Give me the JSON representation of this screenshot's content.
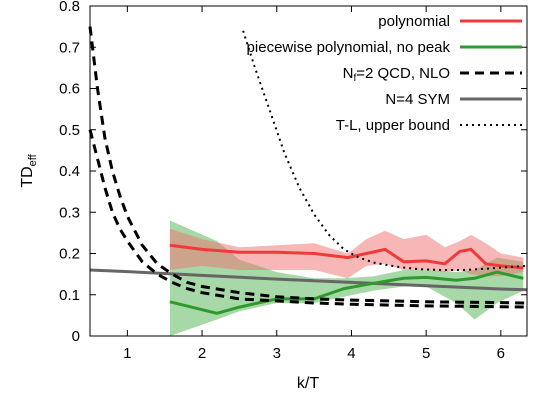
{
  "chart_data": {
    "type": "line",
    "xlabel": "k/T",
    "ylabel": "TD",
    "ylabel_sub": "eff",
    "xlim": [
      0.5,
      6.35
    ],
    "ylim": [
      0,
      0.8
    ],
    "xticks": [
      1,
      2,
      3,
      4,
      5,
      6
    ],
    "xtick_labels": [
      "1",
      "2",
      "3",
      "4",
      "5",
      "6"
    ],
    "yticks": [
      0,
      0.1,
      0.2,
      0.3,
      0.4,
      0.5,
      0.6,
      0.7,
      0.8
    ],
    "ytick_labels": [
      "0",
      "0.1",
      "0.2",
      "0.3",
      "0.4",
      "0.5",
      "0.6",
      "0.7",
      "0.8"
    ],
    "grid": false,
    "legend_position": "top-right",
    "series": [
      {
        "name": "polynomial",
        "color": "#f03a3a",
        "style": "solid",
        "x": [
          1.57,
          2.0,
          2.5,
          3.0,
          3.5,
          3.95,
          4.2,
          4.45,
          4.7,
          5.0,
          5.25,
          5.45,
          5.6,
          5.8,
          6.0,
          6.3
        ],
        "y": [
          0.22,
          0.21,
          0.203,
          0.203,
          0.2,
          0.19,
          0.2,
          0.21,
          0.18,
          0.182,
          0.175,
          0.205,
          0.21,
          0.175,
          0.17,
          0.165
        ],
        "band_upper": [
          0.26,
          0.235,
          0.215,
          0.22,
          0.225,
          0.2,
          0.235,
          0.255,
          0.235,
          0.245,
          0.215,
          0.23,
          0.245,
          0.225,
          0.2,
          0.19
        ],
        "band_lower": [
          0.16,
          0.17,
          0.16,
          0.16,
          0.16,
          0.14,
          0.17,
          0.175,
          0.16,
          0.16,
          0.155,
          0.16,
          0.15,
          0.145,
          0.145,
          0.155
        ]
      },
      {
        "name": "piecewise polynomial, no peak",
        "color": "#2e9a2e",
        "style": "solid",
        "x": [
          1.57,
          2.2,
          2.5,
          3.0,
          3.5,
          3.9,
          4.3,
          4.7,
          5.0,
          5.4,
          5.65,
          5.95,
          6.3
        ],
        "y": [
          0.083,
          0.055,
          0.07,
          0.09,
          0.09,
          0.115,
          0.128,
          0.14,
          0.142,
          0.135,
          0.14,
          0.155,
          0.14
        ],
        "band_upper": [
          0.28,
          0.23,
          0.185,
          0.155,
          0.14,
          0.14,
          0.145,
          0.16,
          0.16,
          0.155,
          0.16,
          0.19,
          0.18
        ],
        "band_lower": [
          0.0,
          0.04,
          0.06,
          0.08,
          0.08,
          0.095,
          0.11,
          0.12,
          0.12,
          0.08,
          0.04,
          0.08,
          0.11
        ]
      },
      {
        "name": "N_f=2 QCD, NLO",
        "label_main": "N",
        "label_sub": "f",
        "label_rest": "=2 QCD, NLO",
        "color": "#000000",
        "style": "dashed",
        "x_left": [
          0.5,
          0.6,
          0.7,
          0.8,
          0.9,
          1.0,
          1.2,
          1.4,
          1.6,
          1.8,
          2.0,
          2.5,
          3.0,
          3.5,
          4.0,
          4.5,
          5.0,
          5.5,
          6.0,
          6.35
        ],
        "y_left": [
          0.75,
          0.6,
          0.48,
          0.4,
          0.34,
          0.29,
          0.22,
          0.175,
          0.15,
          0.13,
          0.12,
          0.105,
          0.095,
          0.09,
          0.087,
          0.085,
          0.083,
          0.082,
          0.081,
          0.08
        ],
        "x_right": [
          0.5,
          0.6,
          0.7,
          0.8,
          0.9,
          1.0,
          1.2,
          1.4,
          1.6,
          1.8,
          2.0,
          2.5,
          3.0,
          3.5,
          4.0,
          4.5,
          5.0,
          5.5,
          6.0,
          6.35
        ],
        "y_right": [
          0.5,
          0.43,
          0.36,
          0.3,
          0.26,
          0.23,
          0.18,
          0.15,
          0.13,
          0.115,
          0.105,
          0.09,
          0.085,
          0.08,
          0.077,
          0.075,
          0.073,
          0.072,
          0.071,
          0.07
        ]
      },
      {
        "name": "N=4 SYM",
        "color": "#666666",
        "style": "solid",
        "x": [
          0.5,
          1.0,
          2.0,
          3.0,
          4.0,
          5.0,
          6.0,
          6.35
        ],
        "y": [
          0.16,
          0.156,
          0.147,
          0.138,
          0.13,
          0.122,
          0.114,
          0.112
        ]
      },
      {
        "name": "T-L, upper bound",
        "color": "#000000",
        "style": "dotted",
        "x": [
          2.55,
          2.7,
          2.9,
          3.1,
          3.3,
          3.5,
          3.7,
          3.9,
          4.1,
          4.3,
          4.6,
          4.9,
          5.2,
          5.5,
          5.8,
          6.1,
          6.35
        ],
        "y": [
          0.74,
          0.655,
          0.55,
          0.445,
          0.36,
          0.295,
          0.245,
          0.21,
          0.19,
          0.178,
          0.168,
          0.162,
          0.16,
          0.16,
          0.163,
          0.167,
          0.17
        ]
      }
    ]
  }
}
